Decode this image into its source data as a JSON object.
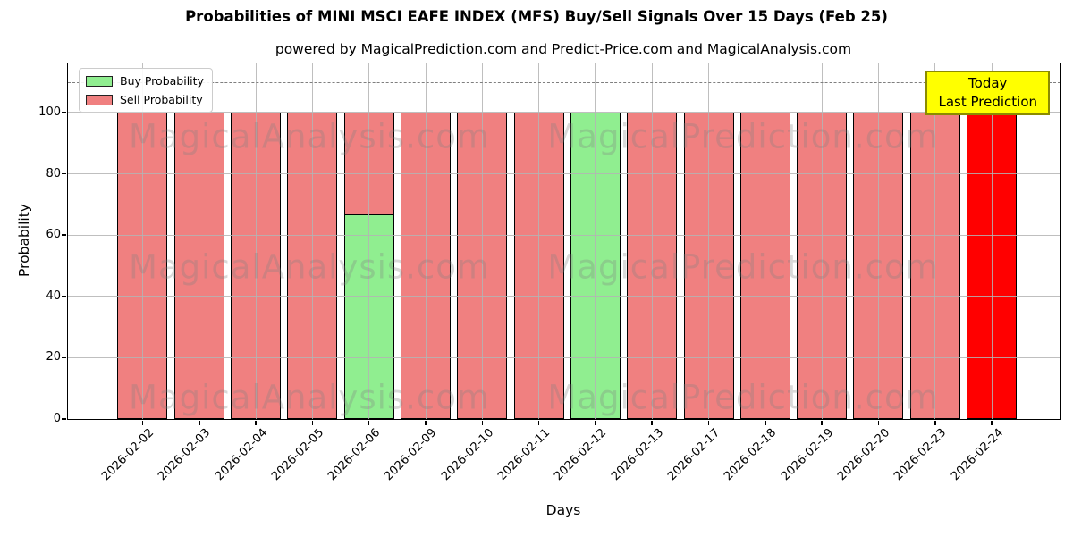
{
  "header": {
    "title": "Probabilities of MINI MSCI EAFE INDEX (MFS) Buy/Sell Signals Over 15 Days (Feb 25)",
    "subtitle": "powered by MagicalPrediction.com and Predict-Price.com and MagicalAnalysis.com"
  },
  "legend": {
    "items": [
      {
        "label": "Buy Probability",
        "color": "#90EE90"
      },
      {
        "label": "Sell Probability",
        "color": "#F08080"
      }
    ]
  },
  "annotation_box": {
    "lines": [
      "Today",
      "Last Prediction"
    ],
    "bg_color": "#FFFF00",
    "border_color": "#8B8B00"
  },
  "watermarks": {
    "texts": [
      "MagicalAnalysis.com",
      "MagicalPrediction.com"
    ],
    "color": "rgba(128,128,128,0.30)"
  },
  "chart_data": {
    "type": "bar",
    "stacked": true,
    "title": "Probabilities of MINI MSCI EAFE INDEX (MFS) Buy/Sell Signals Over 15 Days (Feb 25)",
    "xlabel": "Days",
    "ylabel": "Probability",
    "ylim": [
      0,
      116
    ],
    "yticks": [
      0,
      20,
      40,
      60,
      80,
      100
    ],
    "grid": true,
    "legend_position": "upper left",
    "dashed_threshold_y": 110,
    "categories": [
      "2026-02-02",
      "2026-02-03",
      "2026-02-04",
      "2026-02-05",
      "2026-02-06",
      "2026-02-09",
      "2026-02-10",
      "2026-02-11",
      "2026-02-12",
      "2026-02-13",
      "2026-02-17",
      "2026-02-18",
      "2026-02-19",
      "2026-02-20",
      "2026-02-23",
      "2026-02-24"
    ],
    "series": [
      {
        "name": "Buy Probability",
        "color": "#90EE90",
        "values": [
          0,
          0,
          0,
          0,
          66.67,
          0,
          0,
          0,
          100,
          0,
          0,
          0,
          0,
          0,
          0,
          0
        ]
      },
      {
        "name": "Sell Probability",
        "color": "#F08080",
        "values": [
          100,
          100,
          100,
          100,
          33.33,
          100,
          100,
          100,
          0,
          100,
          100,
          100,
          100,
          100,
          100,
          0
        ]
      },
      {
        "name": "Today Last Prediction",
        "color": "#FF0000",
        "values": [
          0,
          0,
          0,
          0,
          0,
          0,
          0,
          0,
          0,
          0,
          0,
          0,
          0,
          0,
          0,
          100
        ]
      }
    ]
  }
}
